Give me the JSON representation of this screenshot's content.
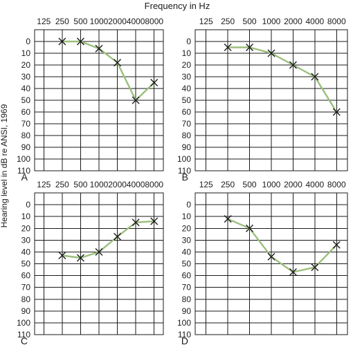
{
  "title": "Frequency in Hz",
  "ylabel": "Hearing level in dB re ANSI, 1969",
  "chart_data": [
    {
      "type": "line",
      "panel": "A",
      "x": [
        250,
        500,
        1000,
        2000,
        4000,
        8000
      ],
      "values": [
        0,
        0,
        6,
        18,
        50,
        35
      ],
      "x_ticks": [
        "125",
        "250",
        "500",
        "1000",
        "2000",
        "4000",
        "8000"
      ],
      "y_ticks": [
        "0",
        "10",
        "20",
        "30",
        "40",
        "50",
        "60",
        "70",
        "80",
        "90",
        "100",
        "110"
      ],
      "ylim": [
        -10,
        110
      ],
      "y_inverted": true,
      "x_scale": "log",
      "grid": true,
      "marker": "x",
      "line_color": "#9bbf7c"
    },
    {
      "type": "line",
      "panel": "B",
      "x": [
        250,
        500,
        1000,
        2000,
        4000,
        8000
      ],
      "values": [
        5,
        5,
        10,
        20,
        30,
        60
      ],
      "x_ticks": [
        "125",
        "250",
        "500",
        "1000",
        "2000",
        "4000",
        "8000"
      ],
      "y_ticks": [
        "0",
        "10",
        "20",
        "30",
        "40",
        "50",
        "60",
        "70",
        "80",
        "90",
        "100",
        "110"
      ],
      "ylim": [
        -10,
        110
      ],
      "y_inverted": true,
      "x_scale": "log",
      "grid": true,
      "marker": "x",
      "line_color": "#9bbf7c"
    },
    {
      "type": "line",
      "panel": "C",
      "x": [
        250,
        500,
        1000,
        2000,
        4000,
        8000
      ],
      "values": [
        43,
        45,
        40,
        27,
        15,
        14
      ],
      "x_ticks": [
        "125",
        "250",
        "500",
        "1000",
        "2000",
        "4000",
        "8000"
      ],
      "y_ticks": [
        "0",
        "10",
        "20",
        "30",
        "40",
        "50",
        "60",
        "70",
        "80",
        "90",
        "100",
        "110"
      ],
      "ylim": [
        -10,
        110
      ],
      "y_inverted": true,
      "x_scale": "log",
      "grid": true,
      "marker": "x",
      "line_color": "#9bbf7c"
    },
    {
      "type": "line",
      "panel": "D",
      "x": [
        250,
        500,
        1000,
        2000,
        4000,
        8000
      ],
      "values": [
        12,
        20,
        44,
        57,
        53,
        34
      ],
      "x_ticks": [
        "125",
        "250",
        "500",
        "1000",
        "2000",
        "4000",
        "8000"
      ],
      "y_ticks": [
        "0",
        "10",
        "20",
        "30",
        "40",
        "50",
        "60",
        "70",
        "80",
        "90",
        "100",
        "110"
      ],
      "ylim": [
        -10,
        110
      ],
      "y_inverted": true,
      "x_scale": "log",
      "grid": true,
      "marker": "x",
      "line_color": "#9bbf7c"
    }
  ]
}
